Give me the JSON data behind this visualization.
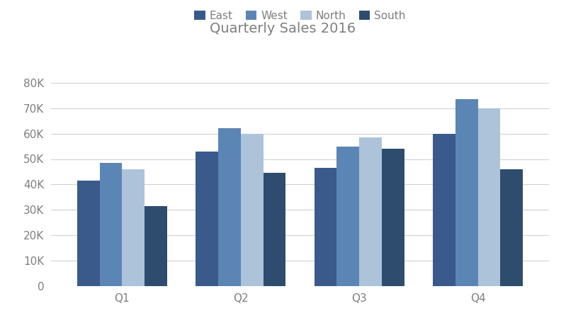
{
  "title": "Quarterly Sales 2016",
  "categories": [
    "Q1",
    "Q2",
    "Q3",
    "Q4"
  ],
  "series": {
    "East": [
      41500,
      53000,
      46500,
      60000
    ],
    "West": [
      48500,
      62000,
      55000,
      73500
    ],
    "North": [
      46000,
      60000,
      58500,
      70000
    ],
    "South": [
      31500,
      44500,
      54000,
      46000
    ]
  },
  "colors": {
    "East": "#3a5a8c",
    "West": "#5b85b5",
    "North": "#adc3d9",
    "South": "#2e4d6e"
  },
  "ylim": [
    0,
    85000
  ],
  "yticks": [
    0,
    10000,
    20000,
    30000,
    40000,
    50000,
    60000,
    70000,
    80000
  ],
  "background_color": "#ffffff",
  "grid_color": "#d0d0d0",
  "title_color": "#7f7f7f",
  "tick_label_color": "#7f7f7f",
  "legend_order": [
    "East",
    "West",
    "North",
    "South"
  ],
  "bar_width": 0.19,
  "figsize": [
    7.99,
    4.49
  ],
  "dpi": 100
}
